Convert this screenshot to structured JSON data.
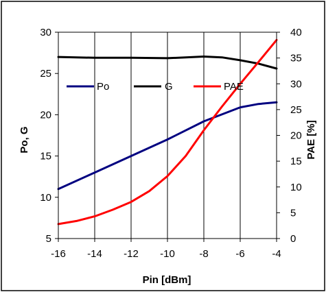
{
  "chart_data": {
    "type": "line",
    "title": "",
    "xlabel": "Pin [dBm]",
    "ylabel": "Po, G",
    "y2label": "PAE [%]",
    "xlim": [
      -16,
      -4
    ],
    "ylim": [
      5,
      30
    ],
    "y2lim": [
      0,
      40
    ],
    "x_ticks": [
      "-16",
      "-14",
      "-12",
      "-10",
      "-8",
      "-6",
      "-4"
    ],
    "y_ticks": [
      "5",
      "10",
      "15",
      "20",
      "25",
      "30"
    ],
    "y2_ticks": [
      "0",
      "5",
      "10",
      "15",
      "20",
      "25",
      "30",
      "35",
      "40"
    ],
    "grid": "vertical",
    "legend_position": "top",
    "series": [
      {
        "name": "Po",
        "axis": "left",
        "color": "#000080",
        "x": [
          -16,
          -14,
          -12,
          -10,
          -8,
          -6,
          -5,
          -4
        ],
        "values": [
          11.0,
          13.0,
          15.0,
          17.0,
          19.2,
          20.9,
          21.3,
          21.5
        ]
      },
      {
        "name": "G",
        "axis": "left",
        "color": "#000000",
        "x": [
          -16,
          -14,
          -12,
          -10,
          -9,
          -8,
          -7,
          -6,
          -5,
          -4
        ],
        "values": [
          27.0,
          26.9,
          26.9,
          26.85,
          26.95,
          27.05,
          26.95,
          26.6,
          26.2,
          25.6
        ]
      },
      {
        "name": "PAE",
        "axis": "right",
        "color": "#ff0000",
        "x": [
          -16,
          -15,
          -14,
          -13,
          -12,
          -11,
          -10,
          -9,
          -8,
          -7,
          -6,
          -5,
          -4
        ],
        "values": [
          2.8,
          3.4,
          4.3,
          5.6,
          7.1,
          9.2,
          12.1,
          16.0,
          21.0,
          25.6,
          30.0,
          34.2,
          38.5
        ]
      }
    ]
  }
}
